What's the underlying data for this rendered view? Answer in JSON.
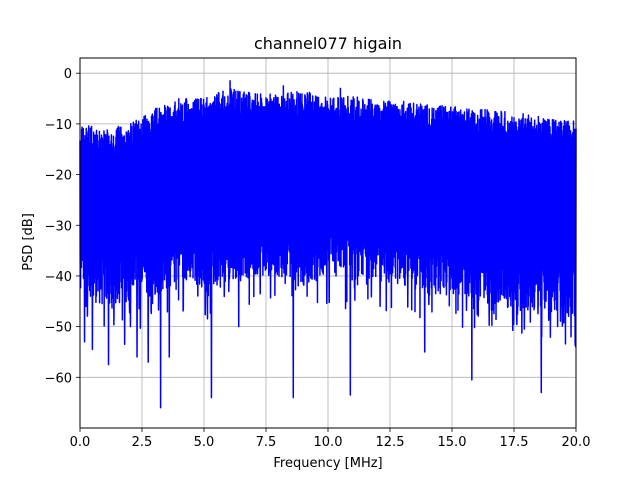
{
  "chart_data": {
    "type": "line",
    "title": "channel077 higain",
    "xlabel": "Frequency [MHz]",
    "ylabel": "PSD [dB]",
    "xlim": [
      0,
      20
    ],
    "ylim": [
      -70,
      3
    ],
    "x_ticks": [
      0,
      2.5,
      5,
      7.5,
      10,
      12.5,
      15,
      17.5,
      20
    ],
    "x_tick_labels": [
      "0.0",
      "2.5",
      "5.0",
      "7.5",
      "10.0",
      "12.5",
      "15.0",
      "17.5",
      "20.0"
    ],
    "y_ticks": [
      0,
      -10,
      -20,
      -30,
      -40,
      -50,
      -60
    ],
    "y_tick_labels": [
      "0",
      "−10",
      "−20",
      "−30",
      "−40",
      "−50",
      "−60"
    ],
    "grid": true,
    "series": [
      {
        "color": "#0000ff",
        "upper_envelope": {
          "x": [
            0,
            1,
            2,
            3,
            4,
            5,
            6,
            7,
            8,
            9,
            10,
            11,
            12,
            13,
            14,
            15,
            16,
            17,
            18,
            19,
            20
          ],
          "y": [
            -10,
            -11,
            -10,
            -7,
            -5,
            -5,
            -3,
            -4,
            -4,
            -3.5,
            -4.5,
            -4.5,
            -5.5,
            -5.5,
            -6,
            -6.5,
            -7,
            -7.5,
            -8,
            -9,
            -9
          ]
        },
        "lower_envelope": {
          "x": [
            0,
            1,
            2,
            3,
            4,
            5,
            6,
            7,
            8,
            9,
            10,
            11,
            12,
            13,
            14,
            15,
            16,
            17,
            18,
            19,
            20
          ],
          "y": [
            -44,
            -46,
            -45,
            -44,
            -41,
            -43,
            -42,
            -40,
            -40,
            -42,
            -40,
            -41,
            -41,
            -42,
            -44,
            -44,
            -45,
            -46,
            -47,
            -47,
            -48
          ]
        },
        "notable_dips": [
          {
            "x": 0.18,
            "y": -53
          },
          {
            "x": 0.5,
            "y": -54.5
          },
          {
            "x": 1.15,
            "y": -57.5
          },
          {
            "x": 1.8,
            "y": -53.5
          },
          {
            "x": 2.3,
            "y": -56
          },
          {
            "x": 2.75,
            "y": -57
          },
          {
            "x": 3.25,
            "y": -66
          },
          {
            "x": 3.6,
            "y": -56
          },
          {
            "x": 5.3,
            "y": -64
          },
          {
            "x": 6.4,
            "y": -50
          },
          {
            "x": 8.6,
            "y": -64
          },
          {
            "x": 10.9,
            "y": -63.5
          },
          {
            "x": 13.9,
            "y": -55
          },
          {
            "x": 15.8,
            "y": -60.5
          },
          {
            "x": 18.6,
            "y": -63
          },
          {
            "x": 19.8,
            "y": -52
          }
        ],
        "notable_peaks": [
          {
            "x": 6.05,
            "y": -1.5
          },
          {
            "x": 8.2,
            "y": -2.5
          },
          {
            "x": 10.5,
            "y": -3
          }
        ]
      }
    ]
  }
}
